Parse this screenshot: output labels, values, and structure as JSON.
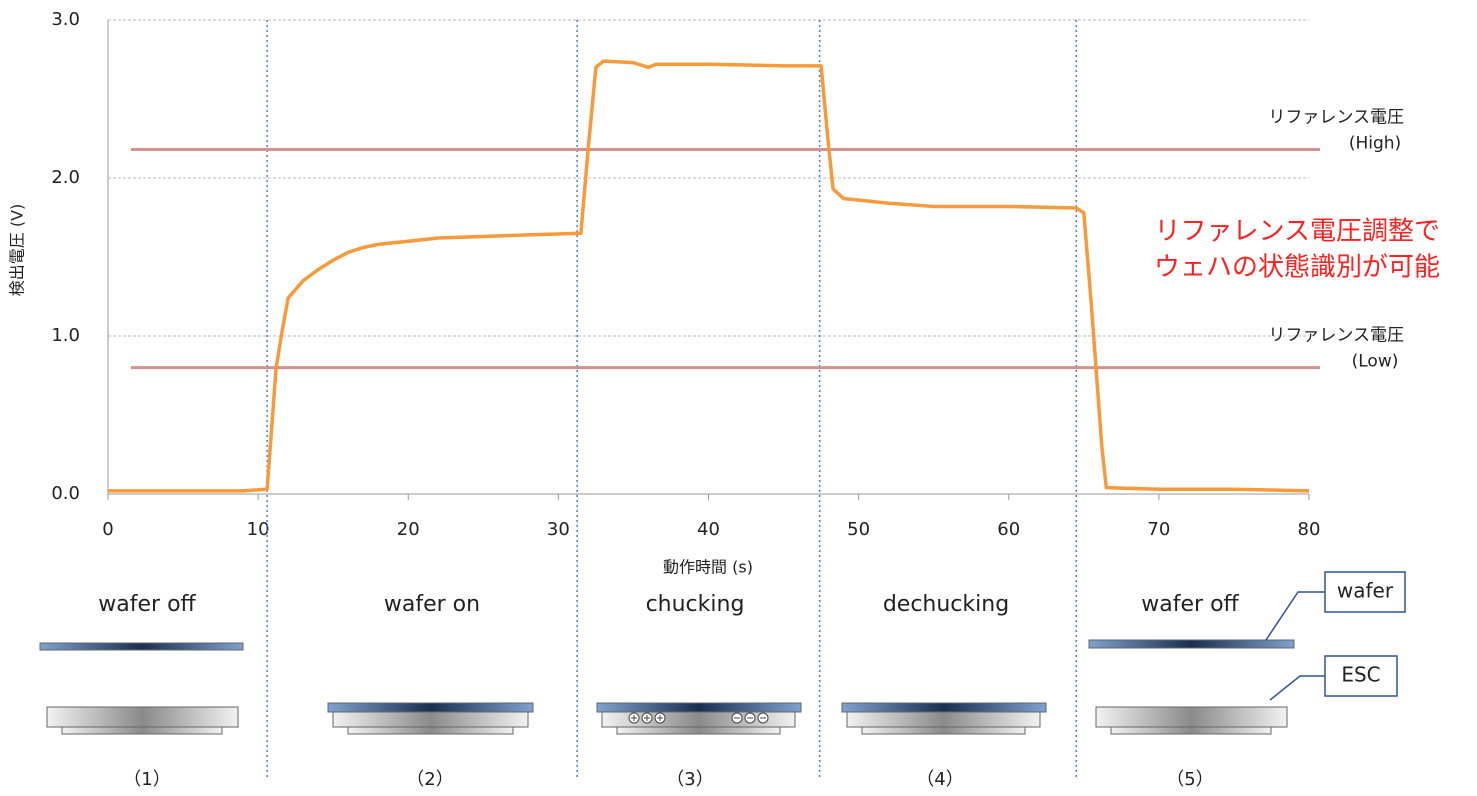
{
  "chart_data": {
    "type": "line",
    "y_label": "検出電圧 (V)",
    "x_label": "動作時間 (s)",
    "xlim": [
      0,
      80
    ],
    "ylim": [
      0,
      3
    ],
    "xticks": [
      0,
      10,
      20,
      30,
      40,
      50,
      60,
      70,
      80
    ],
    "yticks": [
      {
        "value": 0,
        "label": "0.0"
      },
      {
        "value": 1,
        "label": "1.0"
      },
      {
        "value": 2,
        "label": "2.0"
      },
      {
        "value": 3,
        "label": "3.0"
      }
    ],
    "grid": true,
    "series": [
      {
        "color": "#f79a3c",
        "x": [
          0,
          3,
          6,
          9,
          10.6,
          11.2,
          11.6,
          12,
          13,
          14,
          15,
          16,
          17,
          18,
          20,
          22,
          25,
          28,
          31.5,
          32,
          32.5,
          33,
          35,
          36,
          36.5,
          40,
          45,
          47.5,
          48,
          48.3,
          49,
          52,
          55,
          60,
          64.5,
          65,
          65.5,
          66.2,
          66.5,
          70,
          75,
          80
        ],
        "values": [
          0.02,
          0.02,
          0.02,
          0.02,
          0.03,
          0.8,
          1.03,
          1.24,
          1.35,
          1.42,
          1.48,
          1.53,
          1.56,
          1.58,
          1.6,
          1.62,
          1.63,
          1.64,
          1.65,
          2.2,
          2.7,
          2.74,
          2.73,
          2.7,
          2.72,
          2.72,
          2.71,
          2.71,
          2.2,
          1.93,
          1.87,
          1.84,
          1.82,
          1.82,
          1.81,
          1.78,
          1.2,
          0.3,
          0.04,
          0.03,
          0.03,
          0.02
        ]
      }
    ],
    "reference_lines": [
      {
        "value": 2.18,
        "label": "リファレンス電圧",
        "sublabel": "(High)",
        "color": "#d4908f"
      },
      {
        "value": 0.8,
        "label": "リファレンス電圧",
        "sublabel": "(Low)",
        "color": "#d4908f"
      }
    ],
    "phase_boundaries": [
      10.6,
      31.25,
      47.4,
      64.5
    ],
    "annotation": [
      "リファレンス電圧調整で",
      "ウェハの状態識別が可能"
    ],
    "phases": [
      {
        "label": "wafer off",
        "number": "（1）"
      },
      {
        "label": "wafer on",
        "number": "（2）"
      },
      {
        "label": "chucking",
        "number": "（3）"
      },
      {
        "label": "dechucking",
        "number": "（4）"
      },
      {
        "label": "wafer off",
        "number": "（5）"
      }
    ],
    "callouts": [
      "wafer",
      "ESC"
    ]
  }
}
